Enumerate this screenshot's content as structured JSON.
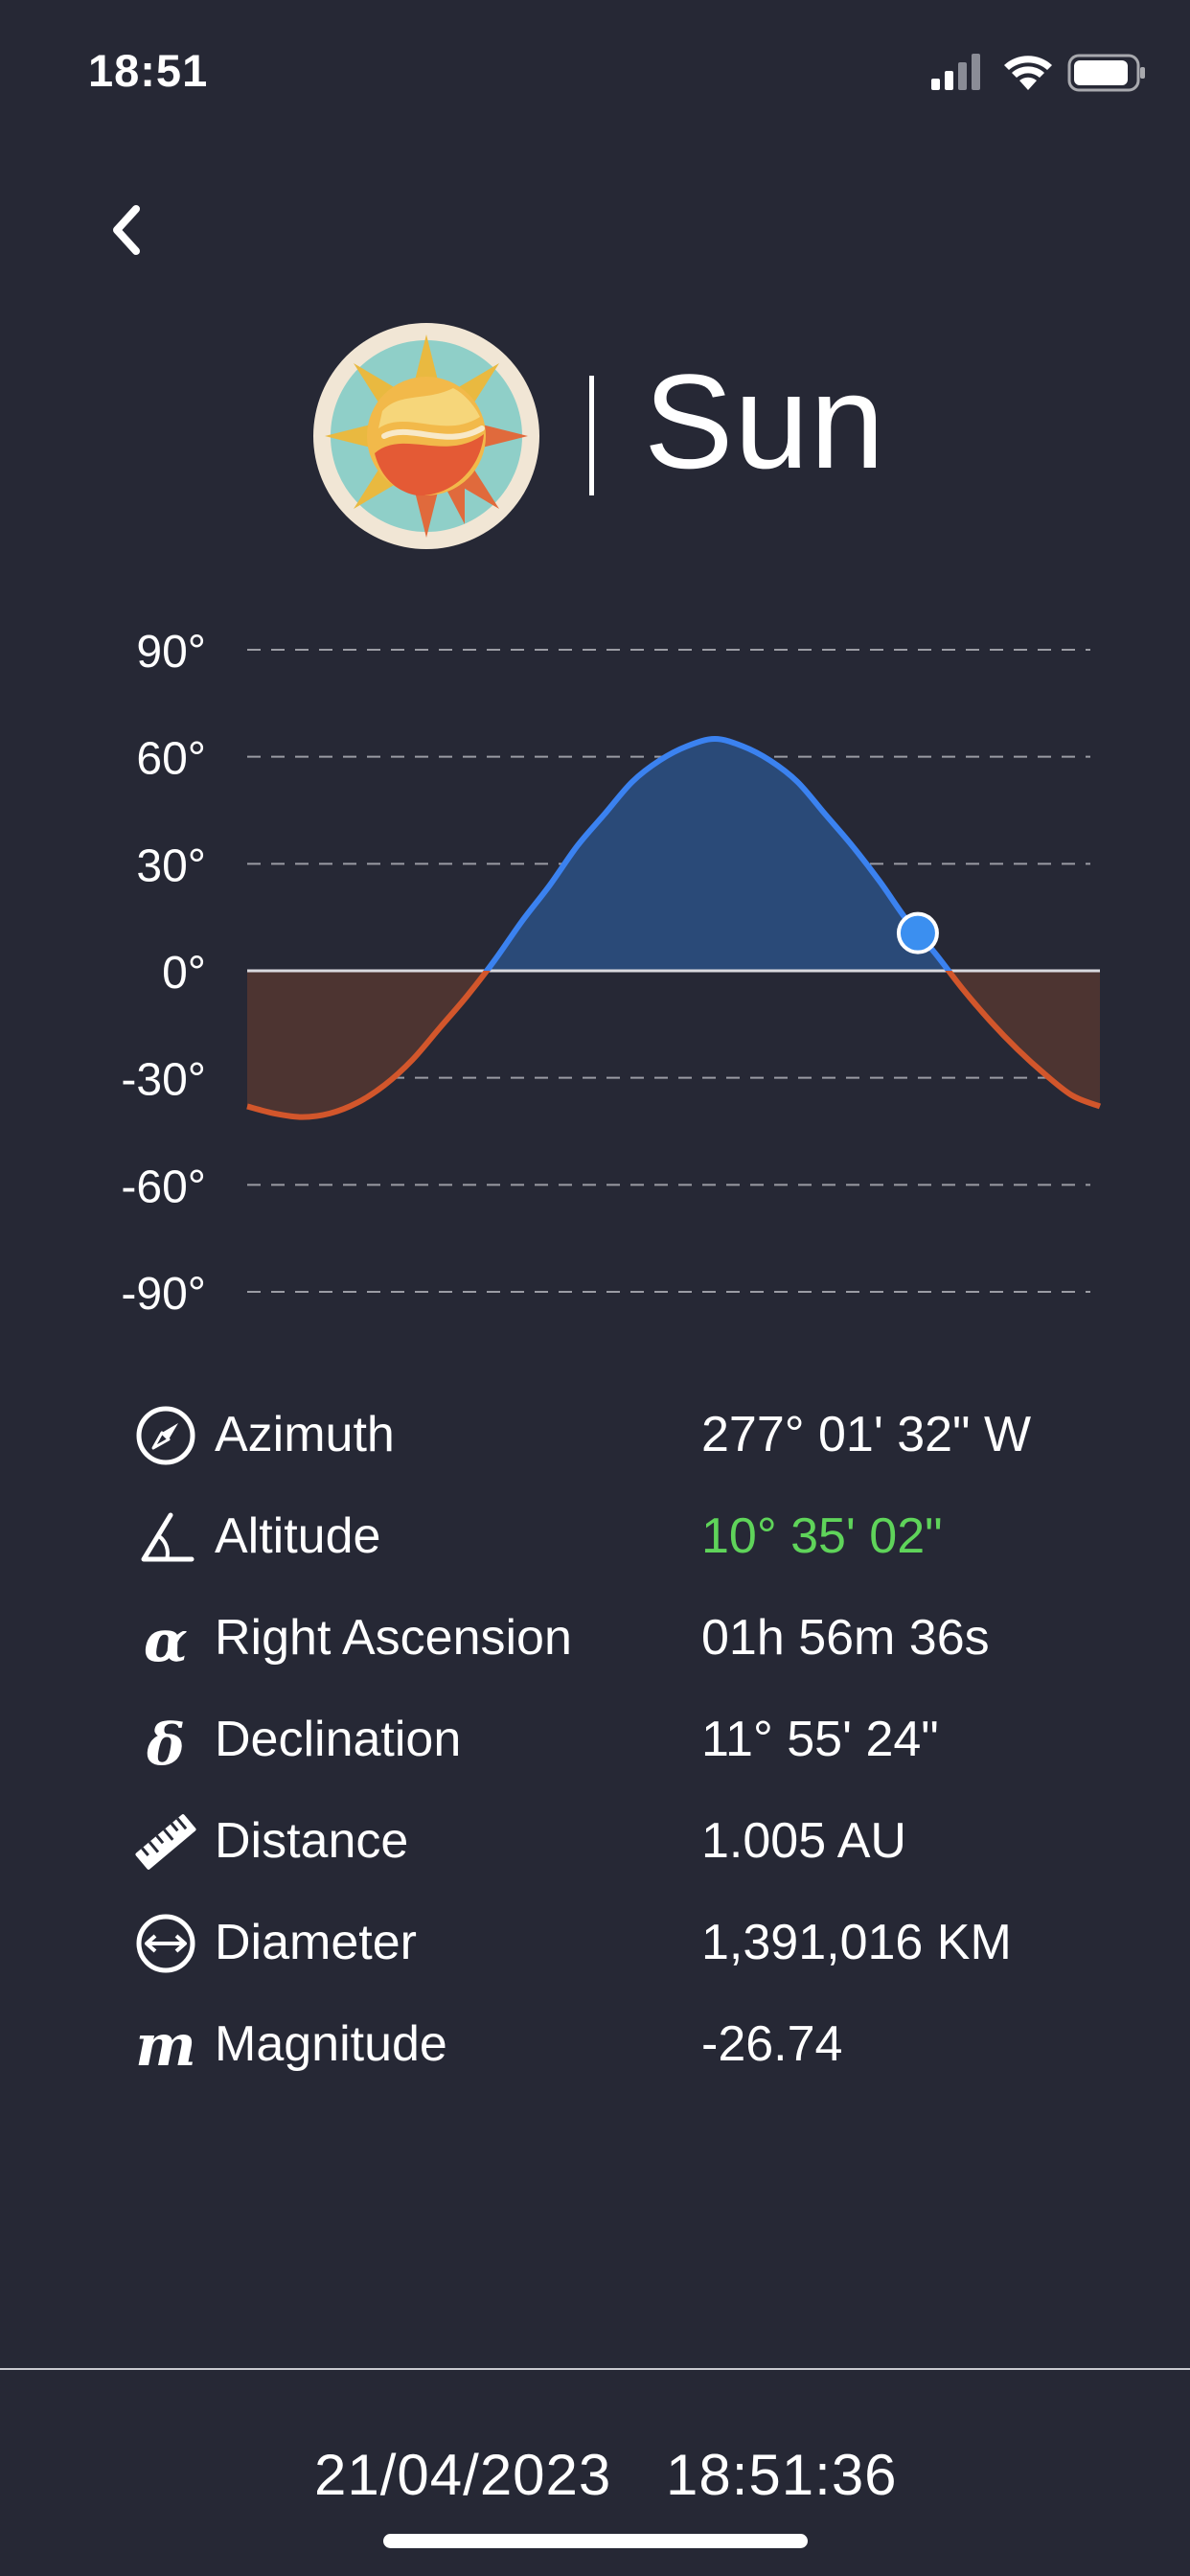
{
  "status_bar": {
    "time": "18:51",
    "icons": [
      "cellular-signal-icon",
      "wifi-icon",
      "battery-icon"
    ]
  },
  "header": {
    "title": "Sun",
    "logo": "sun-logo-icon",
    "back_icon": "chevron-left-icon"
  },
  "chart_data": {
    "type": "line",
    "y_ticks": [
      "90°",
      "60°",
      "30°",
      "0°",
      "-30°",
      "-60°",
      "-90°"
    ],
    "ylim": [
      -90,
      90
    ],
    "grid": "dashed horizontal",
    "series": [
      {
        "values": [
          -38,
          -40,
          -41,
          -40,
          -37,
          -32,
          -25,
          -16,
          -7,
          3,
          14,
          24,
          35,
          44,
          53,
          59,
          63,
          65,
          63,
          59,
          53,
          44,
          35,
          25,
          14,
          5,
          -5,
          -14,
          -22,
          -29,
          -35,
          -38
        ]
      }
    ],
    "current_altitude": 10.58,
    "colors": {
      "above": "#3b82f0",
      "above_fill": "#2a4a78",
      "below": "#d2562b",
      "below_fill": "#4d3431",
      "marker": "#3b8ff0"
    }
  },
  "info": [
    {
      "icon": "compass-icon",
      "label": "Azimuth",
      "value": "277° 01' 32\" W",
      "highlight": false
    },
    {
      "icon": "angle-icon",
      "label": "Altitude",
      "value": "10° 35' 02\"",
      "highlight": true
    },
    {
      "icon": "alpha-icon",
      "label": "Right Ascension",
      "value": "01h 56m 36s",
      "highlight": false
    },
    {
      "icon": "delta-icon",
      "label": "Declination",
      "value": "11° 55' 24\"",
      "highlight": false
    },
    {
      "icon": "ruler-icon",
      "label": "Distance",
      "value": "1.005 AU",
      "highlight": false
    },
    {
      "icon": "diameter-icon",
      "label": "Diameter",
      "value": "1,391,016 KM",
      "highlight": false
    },
    {
      "icon": "magnitude-icon",
      "label": "Magnitude",
      "value": "-26.74",
      "highlight": false
    }
  ],
  "footer": {
    "date": "21/04/2023",
    "time": "18:51:36"
  },
  "colors": {
    "background": "#262835",
    "highlight_value": "#5fd45a"
  }
}
